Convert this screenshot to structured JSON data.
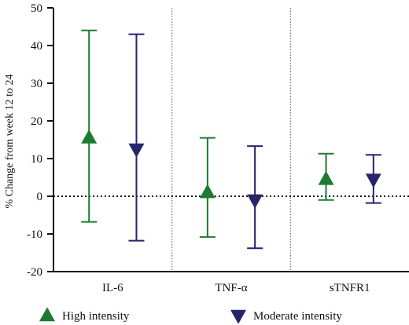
{
  "chart_data": {
    "type": "scatter",
    "title": "",
    "xlabel": "",
    "ylabel": "% Change from week 12 to 24",
    "ylim": [
      -20,
      50
    ],
    "yticks": [
      -20,
      -10,
      0,
      10,
      20,
      30,
      40,
      50
    ],
    "categories": [
      "IL-6",
      "TNF-α",
      "sTNFR1"
    ],
    "reference_line": 0,
    "grid": false,
    "legend_position": "bottom",
    "series": [
      {
        "name": "High intensity",
        "color": "#1f7a32",
        "marker": "triangle-up",
        "values": [
          15.5,
          1.0,
          4.5
        ],
        "upper": [
          44,
          15.5,
          11.3
        ],
        "lower": [
          -6.8,
          -10.8,
          -1.0
        ]
      },
      {
        "name": "Moderate intensity",
        "color": "#27246b",
        "marker": "triangle-down",
        "values": [
          12.5,
          -1.0,
          4.5
        ],
        "upper": [
          43,
          13.3,
          11.0
        ],
        "lower": [
          -11.8,
          -13.8,
          -1.8
        ]
      }
    ]
  }
}
